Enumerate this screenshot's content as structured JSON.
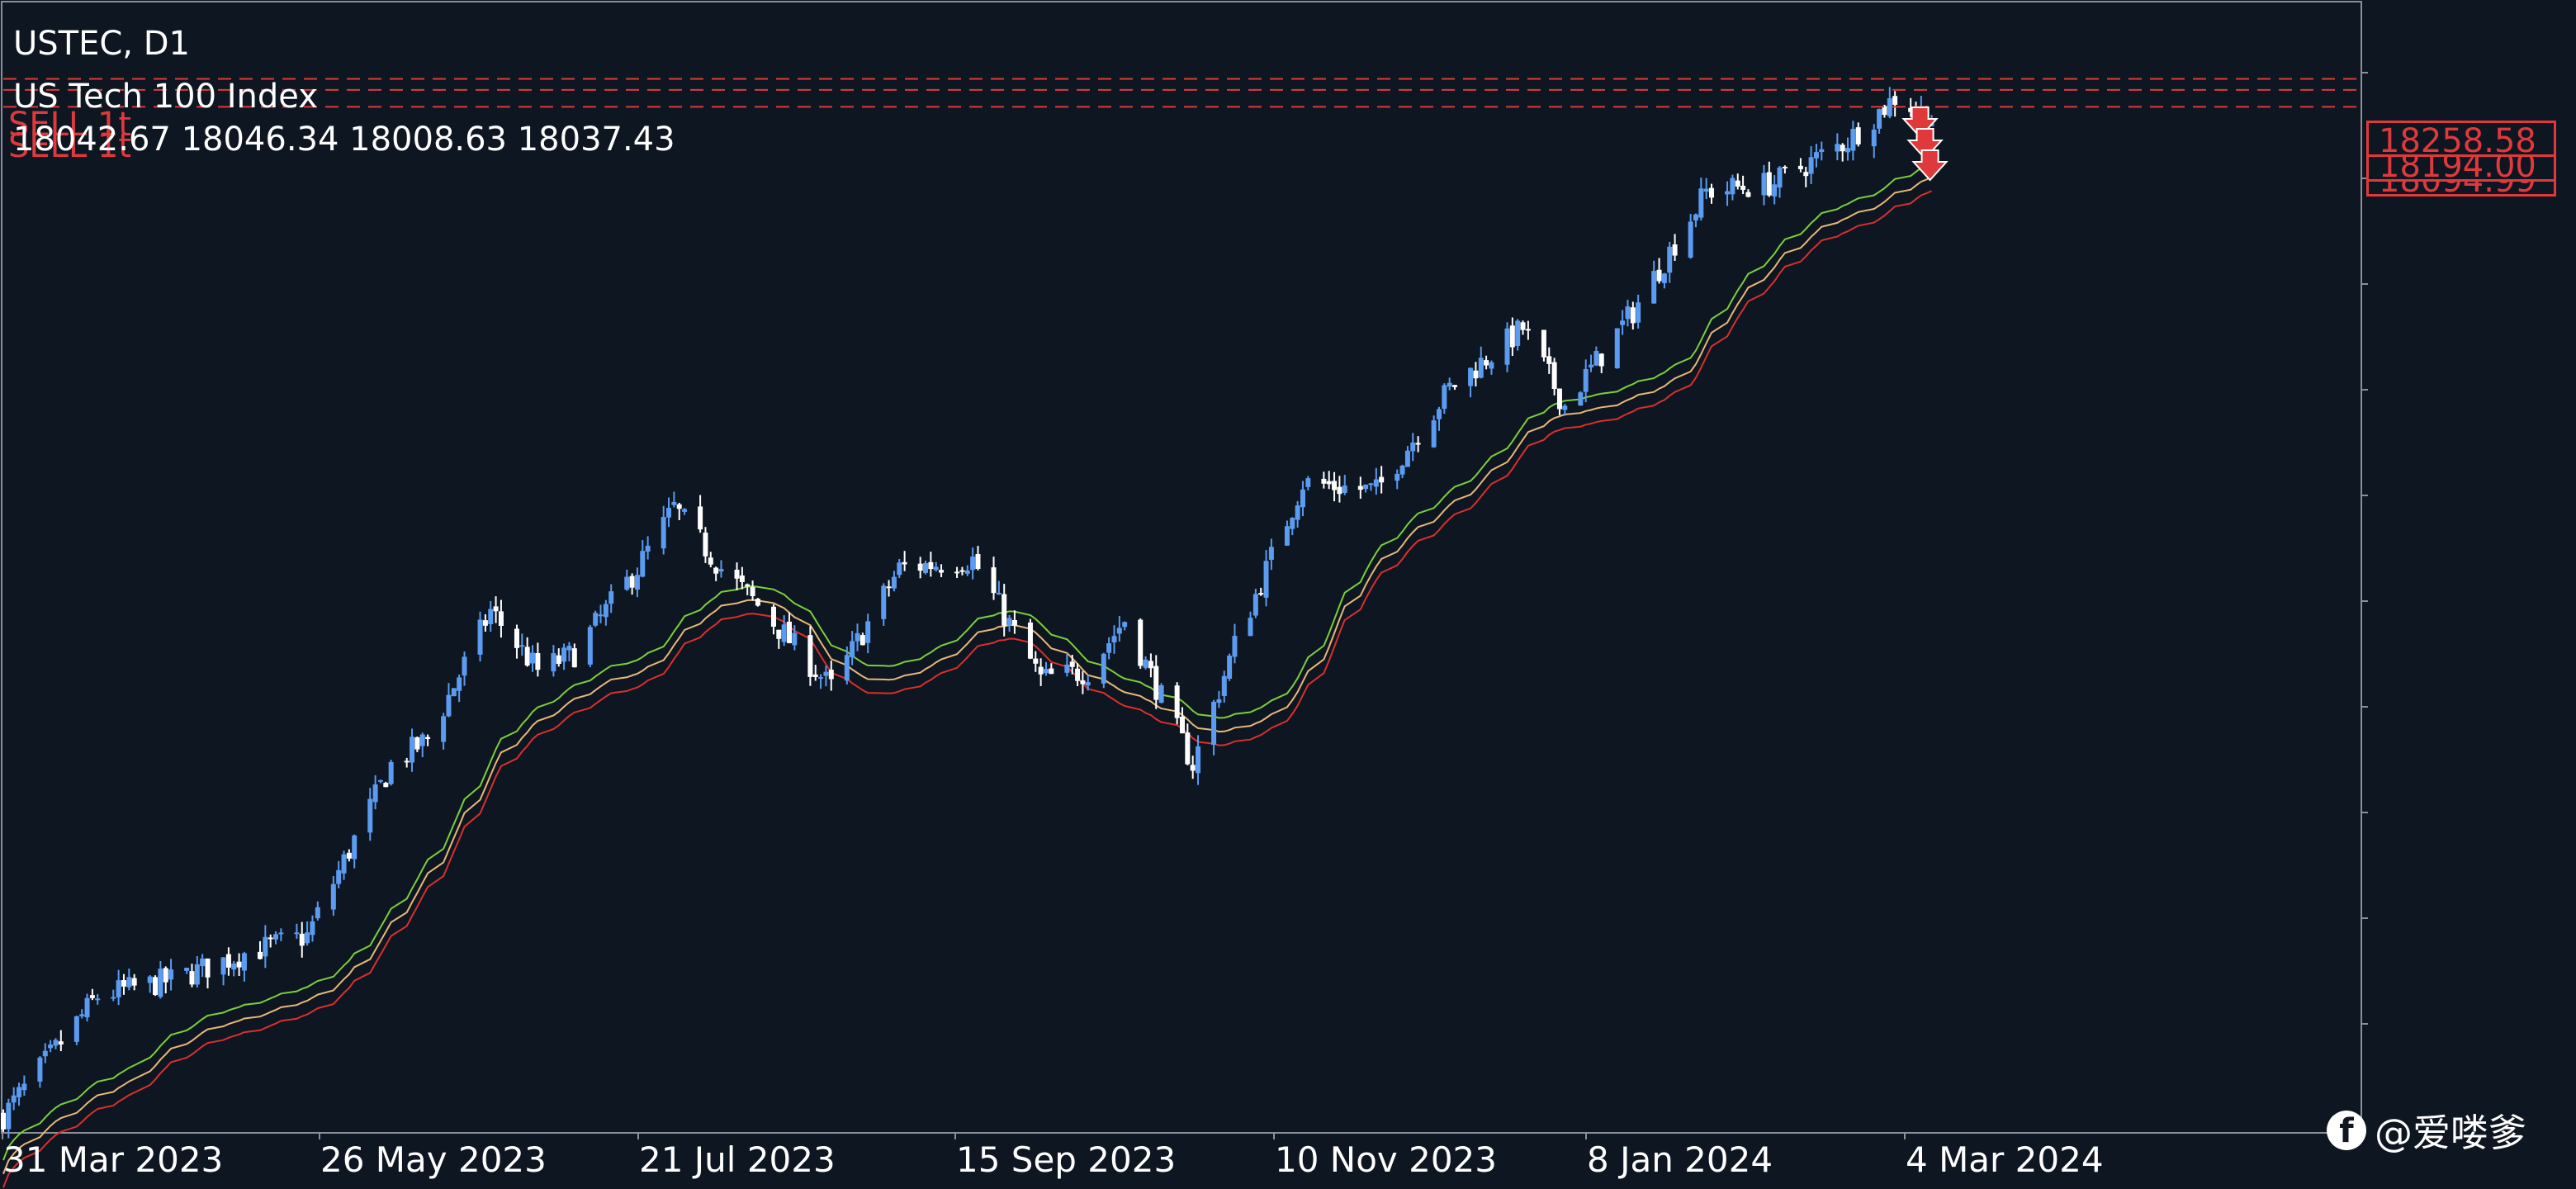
{
  "header": {
    "symbol_line": "USTEC, D1",
    "name_line": "US Tech 100 Index",
    "ohlc_line": "18042.67  18046.34  18008.63  18037.43"
  },
  "overlay_labels": [
    "SELL 1t",
    "SELL 1t"
  ],
  "price_labels": [
    "18258.58",
    "18194.00",
    "18094.99"
  ],
  "watermark": {
    "icon": "facebook-icon",
    "text": "@爱喽爹"
  },
  "colors": {
    "background": "#0e1621",
    "bull_candle": "#5b9bf0",
    "bear_candle": "#ffffff",
    "sell_lines": "#e0393c",
    "ma_fast": "#7ccf3a",
    "ma_mid": "#e8b878",
    "ma_slow": "#d9302c"
  },
  "chart_data": {
    "type": "candlestick",
    "title": "USTEC, D1",
    "subtitle": "US Tech 100 Index",
    "x_tick_labels": [
      "31 Mar 2023",
      "26 May 2023",
      "21 Jul 2023",
      "15 Sep 2023",
      "10 Nov 2023",
      "8 Jan 2024",
      "4 Mar 2024"
    ],
    "x_range": [
      "2023-03-13",
      "2024-06-05"
    ],
    "ylim": [
      12100,
      18700
    ],
    "grid": false,
    "close_path": [
      {
        "date": "2023-03-13",
        "close": 12200
      },
      {
        "date": "2023-03-31",
        "close": 12900
      },
      {
        "date": "2023-04-15",
        "close": 13000
      },
      {
        "date": "2023-04-28",
        "close": 13150
      },
      {
        "date": "2023-05-10",
        "close": 13250
      },
      {
        "date": "2023-05-26",
        "close": 14250
      },
      {
        "date": "2023-06-02",
        "close": 14400
      },
      {
        "date": "2023-06-14",
        "close": 15150
      },
      {
        "date": "2023-06-23",
        "close": 14800
      },
      {
        "date": "2023-06-30",
        "close": 14900
      },
      {
        "date": "2023-07-12",
        "close": 15400
      },
      {
        "date": "2023-07-19",
        "close": 15750
      },
      {
        "date": "2023-07-28",
        "close": 15400
      },
      {
        "date": "2023-08-05",
        "close": 15150
      },
      {
        "date": "2023-08-18",
        "close": 14700
      },
      {
        "date": "2023-08-31",
        "close": 15400
      },
      {
        "date": "2023-09-14",
        "close": 15450
      },
      {
        "date": "2023-09-27",
        "close": 14750
      },
      {
        "date": "2023-10-06",
        "close": 14800
      },
      {
        "date": "2023-10-13",
        "close": 15100
      },
      {
        "date": "2023-10-26",
        "close": 14250
      },
      {
        "date": "2023-11-03",
        "close": 14950
      },
      {
        "date": "2023-11-16",
        "close": 15900
      },
      {
        "date": "2023-11-30",
        "close": 15850
      },
      {
        "date": "2023-12-14",
        "close": 16450
      },
      {
        "date": "2023-12-28",
        "close": 16800
      },
      {
        "date": "2024-01-05",
        "close": 16350
      },
      {
        "date": "2024-01-18",
        "close": 16900
      },
      {
        "date": "2024-02-01",
        "close": 17600
      },
      {
        "date": "2024-02-14",
        "close": 17650
      },
      {
        "date": "2024-02-28",
        "close": 17900
      },
      {
        "date": "2024-03-08",
        "close": 18150
      },
      {
        "date": "2024-03-15",
        "close": 18037
      }
    ],
    "moving_averages": [
      {
        "name": "",
        "color": "#7ccf3a",
        "offset": -180
      },
      {
        "name": "",
        "color": "#e8b878",
        "offset": -260
      },
      {
        "name": "",
        "color": "#d9302c",
        "offset": -340
      }
    ],
    "horizontal_levels": [
      18258.58,
      18194.0,
      18094.99
    ],
    "sell_signals": 3
  }
}
